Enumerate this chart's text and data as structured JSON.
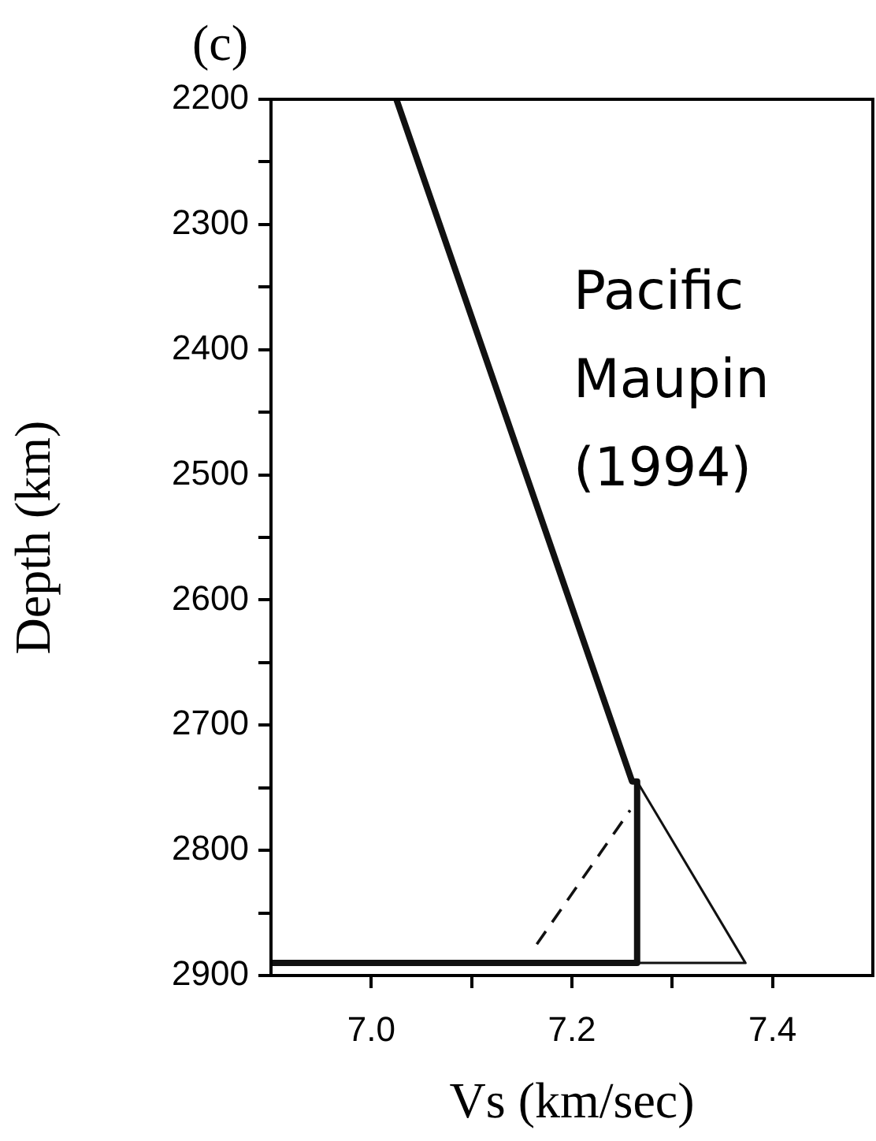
{
  "chart_data": {
    "type": "line",
    "title": "(c)",
    "xlabel": "Vs (km/sec)",
    "ylabel": "Depth (km)",
    "xlim": [
      6.9,
      7.5
    ],
    "xticks": [
      {
        "value": 7.0,
        "label": "7.0"
      },
      {
        "value": 7.1,
        "label": null
      },
      {
        "value": 7.2,
        "label": "7.2"
      },
      {
        "value": 7.3,
        "label": null
      },
      {
        "value": 7.4,
        "label": "7.4"
      }
    ],
    "ylim": [
      2900,
      2200
    ],
    "yticks": [
      2200,
      {
        "value": 2250,
        "label": null
      },
      2300,
      {
        "value": 2350,
        "label": null
      },
      2400,
      {
        "value": 2450,
        "label": null
      },
      2500,
      {
        "value": 2550,
        "label": null
      },
      2600,
      {
        "value": 2650,
        "label": null
      },
      2700,
      {
        "value": 2750,
        "label": null
      },
      2800,
      {
        "value": 2850,
        "label": null
      },
      2900
    ],
    "grid": false,
    "legend": false,
    "marker": "none",
    "annotations": [
      "Pacific\nMaupin\n(1994)"
    ],
    "series": [
      {
        "color": "#111111",
        "line_style": "solid",
        "x": [
          7.025,
          7.26,
          7.265,
          7.265,
          6.9
        ],
        "values": [
          2200,
          2745,
          2745,
          2890,
          2890
        ]
      },
      {
        "color": "#111111",
        "line_style": "solid",
        "x": [
          7.265,
          7.373,
          7.265
        ],
        "values": [
          2745,
          2890,
          2890
        ]
      },
      {
        "color": "#111111",
        "line_style": "dashed",
        "x": [
          7.165,
          7.258
        ],
        "values": [
          2875,
          2768
        ]
      }
    ]
  }
}
